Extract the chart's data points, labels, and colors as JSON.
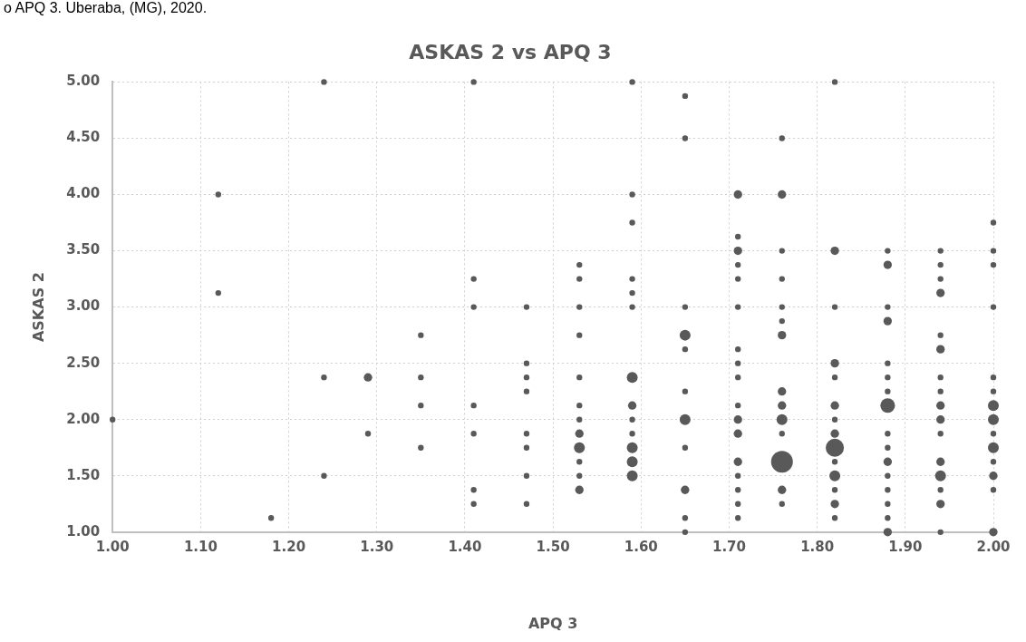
{
  "chart_data": {
    "type": "bubble",
    "title": "ASKAS 2 vs APQ 3",
    "xlabel": "APQ 3",
    "ylabel": "ASKAS 2",
    "annotations": [
      "o APQ 3. Uberaba, (MG), 2020."
    ],
    "xlim": [
      1,
      2
    ],
    "ylim": [
      1,
      5
    ],
    "xticks": [
      {
        "value": 1,
        "label": "1.00"
      },
      {
        "value": 1.1,
        "label": "1.10"
      },
      {
        "value": 1.2,
        "label": "1.20"
      },
      {
        "value": 1.3,
        "label": "1.30"
      },
      {
        "value": 1.4,
        "label": "1.40"
      },
      {
        "value": 1.5,
        "label": "1.50"
      },
      {
        "value": 1.6,
        "label": "1.60"
      },
      {
        "value": 1.7,
        "label": "1.70"
      },
      {
        "value": 1.8,
        "label": "1.80"
      },
      {
        "value": 1.9,
        "label": "1.90"
      },
      {
        "value": 2,
        "label": "2.00"
      }
    ],
    "yticks": [
      {
        "value": 1,
        "label": "1.00"
      },
      {
        "value": 1.5,
        "label": "1.50"
      },
      {
        "value": 2,
        "label": "2.00"
      },
      {
        "value": 2.5,
        "label": "2.50"
      },
      {
        "value": 3,
        "label": "3.00"
      },
      {
        "value": 3.5,
        "label": "3.50"
      },
      {
        "value": 4,
        "label": "4.00"
      },
      {
        "value": 4.5,
        "label": "4.50"
      },
      {
        "value": 5,
        "label": "5.00"
      }
    ],
    "grid": true,
    "series": [
      {
        "color": "#595959",
        "x": [
          1,
          1.12,
          1.12,
          1.18,
          1.24,
          1.24,
          1.24,
          1.29,
          1.29,
          1.35,
          1.35,
          1.35,
          1.35,
          1.41,
          1.41,
          1.41,
          1.41,
          1.41,
          1.41,
          1.41,
          1.47,
          1.47,
          1.47,
          1.47,
          1.47,
          1.47,
          1.47,
          1.47,
          1.53,
          1.53,
          1.53,
          1.53,
          1.53,
          1.53,
          1.53,
          1.53,
          1.53,
          1.53,
          1.53,
          1.53,
          1.59,
          1.59,
          1.59,
          1.59,
          1.59,
          1.59,
          1.59,
          1.59,
          1.59,
          1.59,
          1.59,
          1.59,
          1.59,
          1.65,
          1.65,
          1.65,
          1.65,
          1.65,
          1.65,
          1.65,
          1.65,
          1.65,
          1.65,
          1.65,
          1.71,
          1.71,
          1.71,
          1.71,
          1.71,
          1.71,
          1.71,
          1.71,
          1.71,
          1.71,
          1.71,
          1.71,
          1.71,
          1.71,
          1.71,
          1.71,
          1.71,
          1.76,
          1.76,
          1.76,
          1.76,
          1.76,
          1.76,
          1.76,
          1.76,
          1.76,
          1.76,
          1.76,
          1.76,
          1.76,
          1.76,
          1.82,
          1.82,
          1.82,
          1.82,
          1.82,
          1.82,
          1.82,
          1.82,
          1.82,
          1.82,
          1.82,
          1.82,
          1.82,
          1.82,
          1.88,
          1.88,
          1.88,
          1.88,
          1.88,
          1.88,
          1.88,
          1.88,
          1.88,
          1.88,
          1.88,
          1.88,
          1.88,
          1.88,
          1.88,
          1.88,
          1.94,
          1.94,
          1.94,
          1.94,
          1.94,
          1.94,
          1.94,
          1.94,
          1.94,
          1.94,
          1.94,
          1.94,
          1.94,
          1.94,
          1.94,
          1.94,
          2,
          2,
          2,
          2,
          2,
          2,
          2,
          2,
          2,
          2,
          2,
          2,
          2,
          2
        ],
        "values": [
          2,
          4,
          3.125,
          1.125,
          5,
          2.375,
          1.5,
          2.375,
          1.875,
          2.75,
          2.375,
          2.125,
          1.75,
          5,
          3.25,
          3,
          2.125,
          1.875,
          1.375,
          1.25,
          3,
          2.5,
          2.375,
          2.25,
          1.875,
          1.75,
          1.5,
          1.25,
          3.375,
          3.25,
          3,
          2.75,
          2.375,
          2.125,
          2,
          1.875,
          1.75,
          1.625,
          1.5,
          1.375,
          5,
          4,
          3.75,
          3.25,
          3.125,
          3,
          2.375,
          2.125,
          2,
          1.875,
          1.75,
          1.625,
          1.5,
          4.875,
          4.5,
          3,
          2.75,
          2.625,
          2.25,
          2,
          1.75,
          1.375,
          1.125,
          1,
          4,
          3.625,
          3.5,
          3.375,
          3.25,
          3,
          2.625,
          2.5,
          2.375,
          2.125,
          2,
          1.875,
          1.625,
          1.5,
          1.375,
          1.25,
          1.125,
          4.5,
          4,
          3.5,
          3.25,
          3,
          2.875,
          2.75,
          2.25,
          2.125,
          2,
          1.875,
          1.625,
          1.375,
          1.25,
          5,
          3.5,
          3,
          2.5,
          2.375,
          2.125,
          2,
          1.875,
          1.75,
          1.625,
          1.5,
          1.375,
          1.25,
          1.125,
          3.5,
          3.375,
          3,
          2.875,
          2.5,
          2.375,
          2.25,
          2.125,
          1.875,
          1.75,
          1.625,
          1.5,
          1.375,
          1.25,
          1.125,
          1,
          3.5,
          3.375,
          3.25,
          3.125,
          2.75,
          2.625,
          2.375,
          2.25,
          2.125,
          2,
          1.875,
          1.625,
          1.5,
          1.375,
          1.25,
          1,
          3.75,
          3.5,
          3.375,
          3,
          2.375,
          2.25,
          2.125,
          2,
          1.875,
          1.75,
          1.625,
          1.5,
          1.375,
          1
        ],
        "sizes": [
          0.07,
          0.07,
          0.07,
          0.07,
          0.07,
          0.07,
          0.07,
          0.15,
          0.07,
          0.07,
          0.07,
          0.07,
          0.07,
          0.07,
          0.07,
          0.07,
          0.07,
          0.07,
          0.07,
          0.07,
          0.07,
          0.07,
          0.07,
          0.07,
          0.07,
          0.07,
          0.07,
          0.07,
          0.07,
          0.07,
          0.07,
          0.07,
          0.07,
          0.07,
          0.07,
          0.15,
          0.25,
          0.07,
          0.07,
          0.15,
          0.07,
          0.07,
          0.07,
          0.07,
          0.07,
          0.07,
          0.25,
          0.15,
          0.07,
          0.07,
          0.25,
          0.25,
          0.25,
          0.07,
          0.07,
          0.07,
          0.25,
          0.07,
          0.07,
          0.25,
          0.07,
          0.15,
          0.07,
          0.07,
          0.15,
          0.07,
          0.15,
          0.07,
          0.07,
          0.07,
          0.07,
          0.07,
          0.07,
          0.07,
          0.15,
          0.15,
          0.15,
          0.07,
          0.07,
          0.07,
          0.07,
          0.07,
          0.15,
          0.07,
          0.07,
          0.07,
          0.07,
          0.15,
          0.15,
          0.15,
          0.25,
          0.07,
          1,
          0.15,
          0.07,
          0.07,
          0.15,
          0.07,
          0.15,
          0.07,
          0.15,
          0.07,
          0.15,
          0.7,
          0.07,
          0.25,
          0.07,
          0.15,
          0.07,
          0.07,
          0.15,
          0.07,
          0.15,
          0.07,
          0.07,
          0.07,
          0.45,
          0.07,
          0.07,
          0.15,
          0.07,
          0.07,
          0.07,
          0.07,
          0.15,
          0.07,
          0.07,
          0.07,
          0.15,
          0.07,
          0.15,
          0.07,
          0.07,
          0.15,
          0.15,
          0.07,
          0.15,
          0.25,
          0.07,
          0.15,
          0.07,
          0.07,
          0.07,
          0.07,
          0.07,
          0.07,
          0.07,
          0.25,
          0.25,
          0.07,
          0.25,
          0.07,
          0.15,
          0.07,
          0.15
        ]
      }
    ]
  }
}
